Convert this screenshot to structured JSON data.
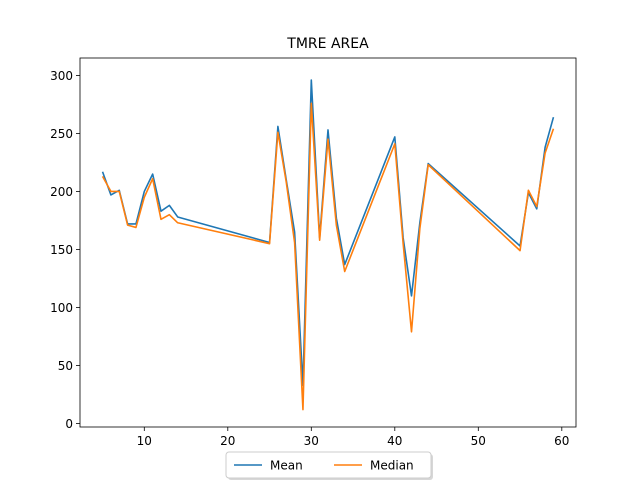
{
  "chart_data": {
    "type": "line",
    "title": "TMRE AREA",
    "xlabel": "",
    "ylabel": "",
    "xlim": [
      2.3,
      61.7
    ],
    "ylim": [
      -3,
      315
    ],
    "xticks": [
      10,
      20,
      30,
      40,
      50,
      60
    ],
    "yticks": [
      0,
      50,
      100,
      150,
      200,
      250,
      300
    ],
    "grid": false,
    "legend_position": "bottom-center (below axes)",
    "x": [
      5,
      6,
      7,
      8,
      9,
      10,
      11,
      12,
      13,
      14,
      25,
      26,
      27,
      28,
      29,
      30,
      31,
      32,
      33,
      34,
      40,
      41,
      42,
      43,
      44,
      55,
      56,
      57,
      58,
      59
    ],
    "series": [
      {
        "name": "Mean",
        "color": "#1f77b4",
        "values": [
          217,
          197,
          201,
          172,
          172,
          200,
          215,
          183,
          188,
          178,
          156,
          256,
          210,
          165,
          33,
          296,
          160,
          253,
          177,
          137,
          247,
          160,
          110,
          173,
          224,
          153,
          199,
          185,
          238,
          264
        ]
      },
      {
        "name": "Median",
        "color": "#ff7f0e",
        "values": [
          213,
          200,
          200,
          171,
          169,
          195,
          211,
          176,
          180,
          173,
          155,
          251,
          208,
          156,
          12,
          276,
          158,
          245,
          171,
          131,
          241,
          155,
          79,
          168,
          223,
          149,
          201,
          187,
          233,
          254
        ]
      }
    ]
  }
}
